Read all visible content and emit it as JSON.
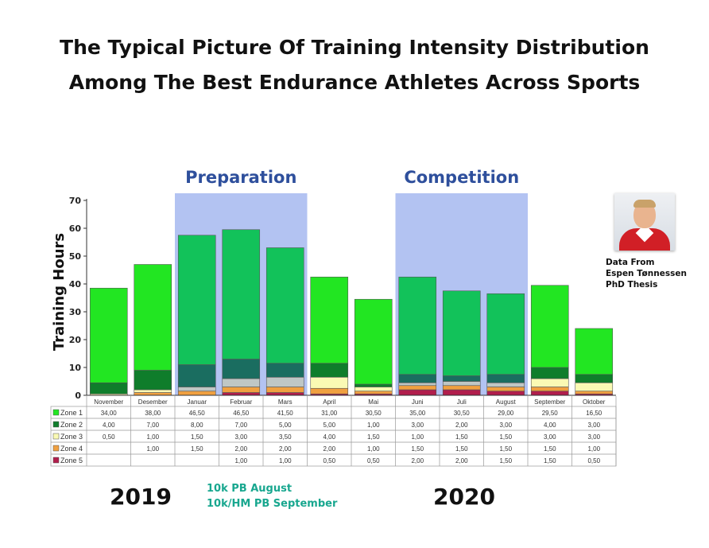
{
  "title": {
    "line1": "The Typical Picture Of Training Intensity Distribution",
    "line2": "Among The Best Endurance Athletes Across Sports"
  },
  "year_labels": {
    "left": "2019",
    "right": "2020"
  },
  "pb_notes": {
    "line1": "10k PB August",
    "line2": "10k/HM PB September"
  },
  "source": {
    "line1": "Data From",
    "line2": "Espen Tønnessen",
    "line3": "PhD Thesis"
  },
  "colors": {
    "zone1_bright": "#22e622",
    "zone1_phase": "#12c25a",
    "zone2_bright": "#0f7d2b",
    "zone2_phase": "#1a6d60",
    "zone3": "#fafab4",
    "zone3_phase": "#bfc7c5",
    "zone4": "#f0a040",
    "zone5": "#b11e4c",
    "phase_band": "#b3c3f2",
    "phase_text": "#2e4f9c"
  },
  "chart_data": {
    "type": "bar",
    "stacked": true,
    "ylabel": "Training Hours",
    "ylim": [
      0,
      70
    ],
    "yticks": [
      "0",
      "10",
      "20",
      "30",
      "40",
      "50",
      "60",
      "70"
    ],
    "grid": false,
    "legend_placement": "table-below",
    "phases": [
      {
        "name": "Preparation",
        "from": "Januar",
        "to": "Mars"
      },
      {
        "name": "Competition",
        "from": "Juni",
        "to": "August"
      }
    ],
    "categories": [
      "November",
      "Desember",
      "Januar",
      "Februar",
      "Mars",
      "April",
      "Mai",
      "Juni",
      "Juli",
      "August",
      "September",
      "Oktober"
    ],
    "series": [
      {
        "name": "Zone 1",
        "values": [
          34.0,
          38.0,
          46.5,
          46.5,
          41.5,
          31.0,
          30.5,
          35.0,
          30.5,
          29.0,
          29.5,
          16.5
        ],
        "labels": [
          "34,00",
          "38,00",
          "46,50",
          "46,50",
          "41,50",
          "31,00",
          "30,50",
          "35,00",
          "30,50",
          "29,00",
          "29,50",
          "16,50"
        ]
      },
      {
        "name": "Zone 2",
        "values": [
          4.0,
          7.0,
          8.0,
          7.0,
          5.0,
          5.0,
          1.0,
          3.0,
          2.0,
          3.0,
          4.0,
          3.0
        ],
        "labels": [
          "4,00",
          "7,00",
          "8,00",
          "7,00",
          "5,00",
          "5,00",
          "1,00",
          "3,00",
          "2,00",
          "3,00",
          "4,00",
          "3,00"
        ]
      },
      {
        "name": "Zone 3",
        "values": [
          0.5,
          1.0,
          1.5,
          3.0,
          3.5,
          4.0,
          1.5,
          1.0,
          1.5,
          1.5,
          3.0,
          3.0
        ],
        "labels": [
          "0,50",
          "1,00",
          "1,50",
          "3,00",
          "3,50",
          "4,00",
          "1,50",
          "1,00",
          "1,50",
          "1,50",
          "3,00",
          "3,00"
        ]
      },
      {
        "name": "Zone 4",
        "values": [
          null,
          1.0,
          1.5,
          2.0,
          2.0,
          2.0,
          1.0,
          1.5,
          1.5,
          1.5,
          1.5,
          1.0
        ],
        "labels": [
          "",
          "1,00",
          "1,50",
          "2,00",
          "2,00",
          "2,00",
          "1,00",
          "1,50",
          "1,50",
          "1,50",
          "1,50",
          "1,00"
        ]
      },
      {
        "name": "Zone 5",
        "values": [
          null,
          null,
          null,
          1.0,
          1.0,
          0.5,
          0.5,
          2.0,
          2.0,
          1.5,
          1.5,
          0.5
        ],
        "labels": [
          "",
          "",
          "",
          "1,00",
          "1,00",
          "0,50",
          "0,50",
          "2,00",
          "2,00",
          "1,50",
          "1,50",
          "0,50"
        ]
      }
    ]
  }
}
